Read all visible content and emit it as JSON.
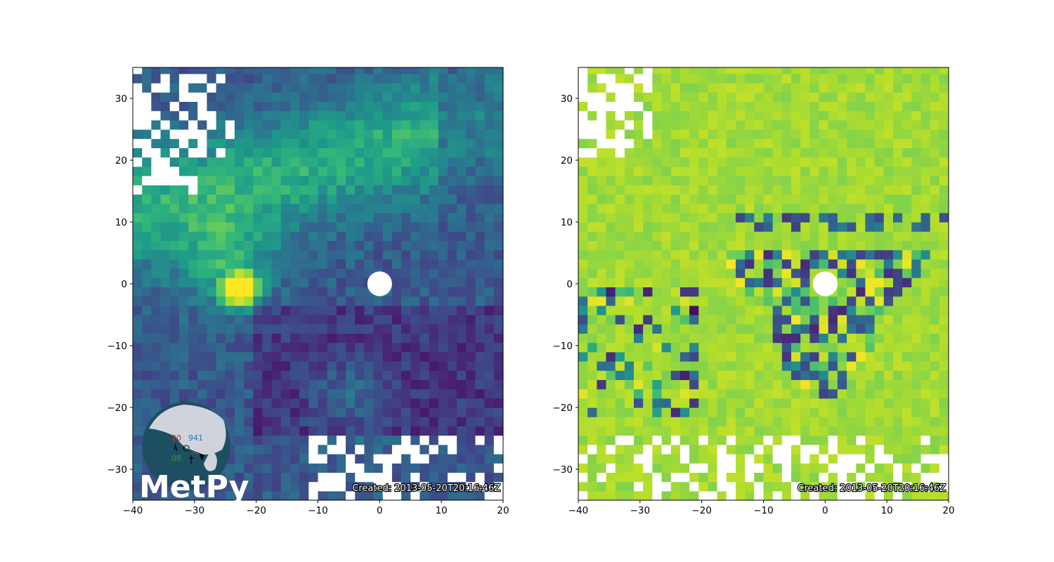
{
  "chart_data": [
    {
      "type": "heatmap",
      "description_colormap": "viridis",
      "xlim": [
        -40,
        20
      ],
      "ylim": [
        -35,
        35
      ],
      "x_ticks": [
        -40,
        -30,
        -20,
        -10,
        0,
        10,
        20
      ],
      "y_ticks": [
        -30,
        -20,
        -10,
        0,
        10,
        20,
        30
      ],
      "x_tick_labels": [
        "−40",
        "−30",
        "−20",
        "−10",
        "0",
        "10",
        "20"
      ],
      "y_tick_labels": [
        "−30",
        "−20",
        "−10",
        "0",
        "10",
        "20",
        "30"
      ],
      "radar_center": [
        0,
        0
      ],
      "blank_center_radius": 2,
      "hook_echo_center": [
        -22.5,
        -1
      ],
      "annotation": "Created: 2013-05-20T20:16:46Z",
      "logo": {
        "text": "MetPy",
        "station_values": [
          "20",
          "941",
          "08"
        ]
      }
    },
    {
      "type": "heatmap",
      "description_colormap": "viridis",
      "xlim": [
        -40,
        20
      ],
      "ylim": [
        -35,
        35
      ],
      "x_ticks": [
        -40,
        -30,
        -20,
        -10,
        0,
        10,
        20
      ],
      "y_ticks": [
        -30,
        -20,
        -10,
        0,
        10,
        20,
        30
      ],
      "x_tick_labels": [
        "−40",
        "−30",
        "−20",
        "−10",
        "0",
        "10",
        "20"
      ],
      "y_tick_labels": [
        "−30",
        "−20",
        "−10",
        "0",
        "10",
        "20",
        "30"
      ],
      "radar_center": [
        0,
        0
      ],
      "blank_center_radius": 2,
      "annotation": "Created: 2013-05-20T20:16:46Z"
    }
  ],
  "colors": {
    "viridis_dark": "#440154",
    "viridis_blue": "#3b528b",
    "viridis_teal": "#21918c",
    "viridis_green": "#5ec962",
    "viridis_yellow": "#fde725",
    "logo_globe": "#1e4f60",
    "logo_land": "#cfd4dc",
    "logo_red": "#e62020",
    "logo_blue": "#1f77b4",
    "logo_green": "#2ca02c"
  }
}
